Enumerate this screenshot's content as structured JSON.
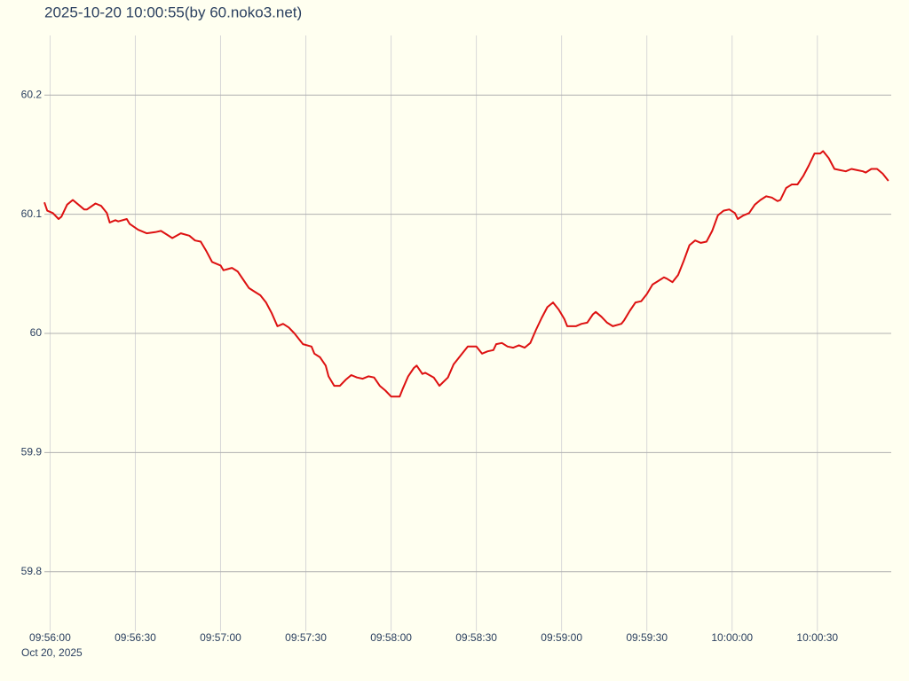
{
  "chart_data": {
    "type": "line",
    "title": "2025-10-20 10:00:55(by 60.noko3.net)",
    "x_date_label": "Oct 20, 2025",
    "x": [
      "09:55:58",
      "09:55:59",
      "09:56:01",
      "09:56:03",
      "09:56:04",
      "09:56:06",
      "09:56:08",
      "09:56:10",
      "09:56:12",
      "09:56:13",
      "09:56:16",
      "09:56:18",
      "09:56:20",
      "09:56:21",
      "09:56:23",
      "09:56:24",
      "09:56:27",
      "09:56:28",
      "09:56:31",
      "09:56:34",
      "09:56:37",
      "09:56:39",
      "09:56:41",
      "09:56:43",
      "09:56:46",
      "09:56:49",
      "09:56:51",
      "09:56:53",
      "09:56:55",
      "09:56:57",
      "09:57:00",
      "09:57:01",
      "09:57:04",
      "09:57:06",
      "09:57:08",
      "09:57:10",
      "09:57:12",
      "09:57:14",
      "09:57:16",
      "09:57:18",
      "09:57:20",
      "09:57:22",
      "09:57:24",
      "09:57:26",
      "09:57:29",
      "09:57:32",
      "09:57:33",
      "09:57:35",
      "09:57:37",
      "09:57:38",
      "09:57:40",
      "09:57:42",
      "09:57:44",
      "09:57:46",
      "09:57:48",
      "09:57:50",
      "09:57:52",
      "09:57:54",
      "09:57:56",
      "09:57:58",
      "09:58:00",
      "09:58:03",
      "09:58:04",
      "09:58:06",
      "09:58:08",
      "09:58:09",
      "09:58:11",
      "09:58:12",
      "09:58:15",
      "09:58:17",
      "09:58:20",
      "09:58:22",
      "09:58:23",
      "09:58:25",
      "09:58:27",
      "09:58:30",
      "09:58:32",
      "09:58:34",
      "09:58:36",
      "09:58:37",
      "09:58:39",
      "09:58:41",
      "09:58:43",
      "09:58:45",
      "09:58:47",
      "09:58:49",
      "09:58:51",
      "09:58:53",
      "09:58:55",
      "09:58:57",
      "09:58:59",
      "09:59:01",
      "09:59:02",
      "09:59:05",
      "09:59:07",
      "09:59:09",
      "09:59:11",
      "09:59:12",
      "09:59:14",
      "09:59:16",
      "09:59:18",
      "09:59:21",
      "09:59:22",
      "09:59:24",
      "09:59:26",
      "09:59:28",
      "09:59:30",
      "09:59:32",
      "09:59:34",
      "09:59:36",
      "09:59:37",
      "09:59:39",
      "09:59:41",
      "09:59:43",
      "09:59:45",
      "09:59:47",
      "09:59:49",
      "09:59:51",
      "09:59:53",
      "09:59:55",
      "09:59:57",
      "09:59:59",
      "10:00:01",
      "10:00:02",
      "10:00:04",
      "10:00:06",
      "10:00:08",
      "10:00:10",
      "10:00:12",
      "10:00:14",
      "10:00:16",
      "10:00:17",
      "10:00:19",
      "10:00:21",
      "10:00:23",
      "10:00:25",
      "10:00:27",
      "10:00:29",
      "10:00:31",
      "10:00:32",
      "10:00:34",
      "10:00:36",
      "10:00:38",
      "10:00:40",
      "10:00:42",
      "10:00:44",
      "10:00:46",
      "10:00:47",
      "10:00:49",
      "10:00:51",
      "10:00:53",
      "10:00:55"
    ],
    "series": [
      {
        "color": "#dd1111",
        "values": [
          60.11,
          60.103,
          60.101,
          60.096,
          60.098,
          60.108,
          60.112,
          60.108,
          60.104,
          60.104,
          60.109,
          60.107,
          60.101,
          60.093,
          60.095,
          60.094,
          60.096,
          60.092,
          60.087,
          60.084,
          60.085,
          60.086,
          60.083,
          60.08,
          60.084,
          60.082,
          60.078,
          60.077,
          60.069,
          60.06,
          60.057,
          60.053,
          60.055,
          60.052,
          60.045,
          60.038,
          60.035,
          60.032,
          60.026,
          60.017,
          60.006,
          60.008,
          60.005,
          60.0,
          59.991,
          59.989,
          59.983,
          59.98,
          59.973,
          59.964,
          59.956,
          59.956,
          59.961,
          59.965,
          59.963,
          59.962,
          59.964,
          59.963,
          59.956,
          59.952,
          59.947,
          59.947,
          59.953,
          59.964,
          59.971,
          59.973,
          59.966,
          59.967,
          59.963,
          59.956,
          59.963,
          59.974,
          59.977,
          59.983,
          59.989,
          59.989,
          59.983,
          59.985,
          59.986,
          59.991,
          59.992,
          59.989,
          59.988,
          59.99,
          59.988,
          59.992,
          60.003,
          60.013,
          60.022,
          60.026,
          60.02,
          60.012,
          60.006,
          60.006,
          60.008,
          60.009,
          60.016,
          60.018,
          60.014,
          60.009,
          60.006,
          60.008,
          60.011,
          60.019,
          60.026,
          60.027,
          60.033,
          60.041,
          60.044,
          60.047,
          60.046,
          60.043,
          60.049,
          60.061,
          60.074,
          60.078,
          60.076,
          60.077,
          60.086,
          60.099,
          60.103,
          60.104,
          60.101,
          60.096,
          60.099,
          60.101,
          60.108,
          60.112,
          60.115,
          60.114,
          60.111,
          60.112,
          60.122,
          60.125,
          60.125,
          60.132,
          60.141,
          60.151,
          60.151,
          60.153,
          60.147,
          60.138,
          60.137,
          60.136,
          60.138,
          60.137,
          60.136,
          60.135,
          60.138,
          60.138,
          60.134,
          60.128
        ]
      }
    ],
    "xlim": [
      "09:55:58",
      "10:00:56"
    ],
    "xticks": [
      "09:56:00",
      "09:56:30",
      "09:57:00",
      "09:57:30",
      "09:58:00",
      "09:58:30",
      "09:59:00",
      "09:59:30",
      "10:00:00",
      "10:00:30"
    ],
    "ylim": [
      59.75,
      60.25
    ],
    "yticks": [
      59.8,
      59.9,
      60,
      60.1,
      60.2
    ],
    "grid": true
  }
}
